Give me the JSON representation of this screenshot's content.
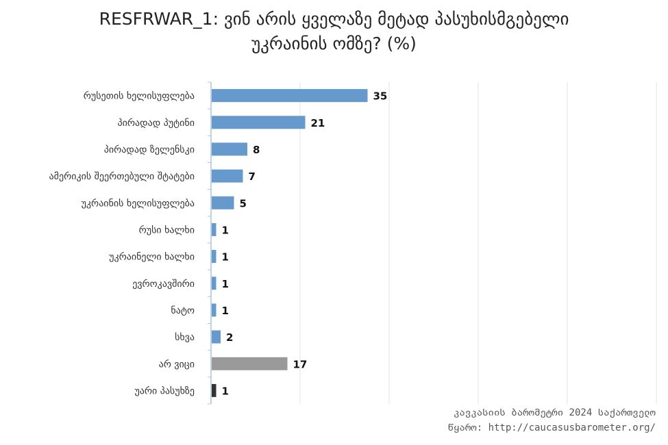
{
  "chart_data": {
    "type": "bar",
    "orientation": "horizontal",
    "title_line1": "RESFRWAR_1: ვინ არის ყველაზე მეტად პასუხისმგებელი",
    "title_line2": "უკრაინის ომზე? (%)",
    "categories": [
      "რუსეთის ხელისუფლება",
      "პირადად პუტინი",
      "პირადად ზელენსკი",
      "ამერიკის შეერთებული შტატები",
      "უკრაინის ხელისუფლება",
      "რუსი ხალხი",
      "უკრაინელი ხალხი",
      "ევროკავშირი",
      "ნატო",
      "სხვა",
      "არ ვიცი",
      "უარი პასუხზე"
    ],
    "values": [
      35,
      21,
      8,
      7,
      5,
      1,
      1,
      1,
      1,
      2,
      17,
      1
    ],
    "bar_colors": [
      "#6699cc",
      "#6699cc",
      "#6699cc",
      "#6699cc",
      "#6699cc",
      "#6699cc",
      "#6699cc",
      "#6699cc",
      "#6699cc",
      "#6699cc",
      "#999999",
      "#333333"
    ],
    "xlim": [
      0,
      100
    ],
    "gridlines": true,
    "data_labels": true
  },
  "source": {
    "line1": "კავკასიის ბარომეტრი 2024 საქართველო",
    "line2": "წყარო: http://caucasusbarometer.org/"
  }
}
